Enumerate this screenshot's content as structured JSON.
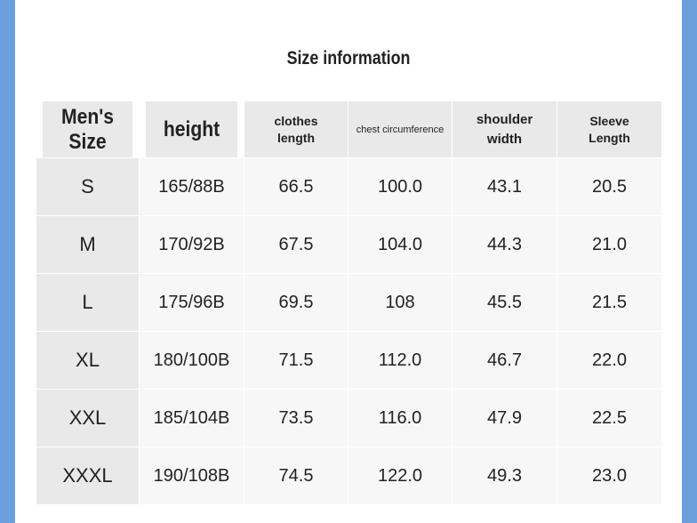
{
  "header": {
    "title": "Size information"
  },
  "table": {
    "columns": [
      "Men's Size",
      "height",
      "clothes length",
      "chest circumference",
      "shoulder width",
      "Sleeve Length"
    ],
    "rows": [
      [
        "S",
        "165/88B",
        "66.5",
        "100.0",
        "43.1",
        "20.5"
      ],
      [
        "M",
        "170/92B",
        "67.5",
        "104.0",
        "44.3",
        "21.0"
      ],
      [
        "L",
        "175/96B",
        "69.5",
        "108",
        "45.5",
        "21.5"
      ],
      [
        "XL",
        "180/100B",
        "71.5",
        "112.0",
        "46.7",
        "22.0"
      ],
      [
        "XXL",
        "185/104B",
        "73.5",
        "116.0",
        "47.9",
        "22.5"
      ],
      [
        "XXXL",
        "190/108B",
        "74.5",
        "122.0",
        "49.3",
        "23.0"
      ]
    ]
  }
}
